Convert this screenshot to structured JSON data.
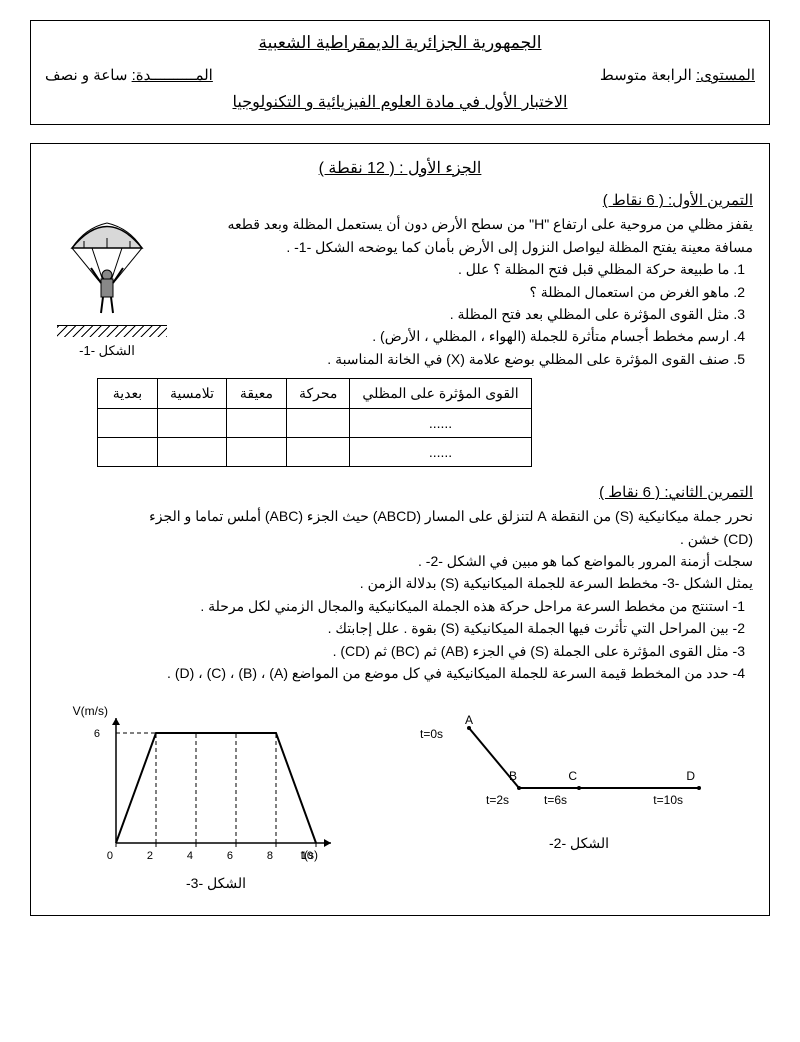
{
  "header": {
    "country": "الجمهورية الجزائرية الديمقراطية الشعبية",
    "level_label": "المستوى:",
    "level_value": "الرابعة متوسط",
    "duration_label": "المــــــــــدة:",
    "duration_value": "ساعة و نصف",
    "exam_title": "الاختبار الأول في مادة العلوم الفيزيائية و التكنولوجيا"
  },
  "part1": {
    "title": "الجزء الأول : ( 12 نقطة )"
  },
  "exercise1": {
    "title": "التمرين الأول: ( 6 نقاط )",
    "intro1": "يقفز مظلي من مروحية على ارتفاع \"H\" من سطح الأرض دون أن يستعمل المظلة وبعد قطعه",
    "intro2": "مسافة معينة يفتح المظلة ليواصل النزول إلى الأرض بأمان كما يوضحه الشكل -1- .",
    "q1": "1. ما طبيعة حركة المظلي قبل فتح المظلة ؟ علل .",
    "q2": "2. ماهو الغرض من استعمال المظلة ؟",
    "q3": "3. مثل القوى المؤثرة على المظلي بعد فتح المظلة .",
    "q4": "4. ارسم مخطط أجسام متأثرة للجملة (الهواء ، المظلي ، الأرض) .",
    "q5": "5. صنف القوى المؤثرة على المظلي بوضع علامة (X) في الخانة المناسبة .",
    "fig_label": "الشكل -1-",
    "table": {
      "h1": "القوى المؤثرة على المظلي",
      "h2": "محركة",
      "h3": "معيقة",
      "h4": "تلامسية",
      "h5": "بعدية",
      "dots": "......"
    }
  },
  "exercise2": {
    "title": "التمرين الثاني: ( 6 نقاط )",
    "line1": "نحرر جملة ميكانيكية (S) من النقطة A لتنزلق على المسار (ABCD) حيث الجزء (ABC) أملس تماما و الجزء",
    "line2": "(CD) خشن .",
    "line3": "سجلت أزمنة المرور بالمواضع كما هو مبين في الشكل -2- .",
    "line4": "يمثل الشكل -3- مخطط السرعة للجملة الميكانيكية (S) بدلالة الزمن .",
    "q1": "1- استنتج من مخطط السرعة مراحل حركة هذه الجملة الميكانيكية والمجال الزمني لكل مرحلة .",
    "q2": "2- بين المراحل التي تأثرت فيها الجملة الميكانيكية (S) بقوة . علل إجابتك .",
    "q3": "3- مثل القوى المؤثرة على الجملة (S) في الجزء (AB) ثم (BC) ثم (CD) .",
    "q4": "4- حدد من المخطط قيمة السرعة للجملة الميكانيكية في كل موضع من المواضع (A) ، (B) ، (C) ، (D) .",
    "fig2_label": "الشكل -2-",
    "fig3_label": "الشكل -3-"
  },
  "figure2": {
    "pointA": "A",
    "pointB": "B",
    "pointC": "C",
    "pointD": "D",
    "tA": "t=0s",
    "tB": "t=2s",
    "tC": "t=6s",
    "tD": "t=10s"
  },
  "figure3": {
    "ylabel": "V(m/s)",
    "xlabel": "t(s)",
    "ymax_label": "6",
    "xticks": [
      "0",
      "2",
      "4",
      "6",
      "8",
      "10"
    ],
    "ymax": 6,
    "xmax": 10,
    "points": [
      [
        0,
        0
      ],
      [
        2,
        6
      ],
      [
        4,
        6
      ],
      [
        6,
        6
      ],
      [
        8,
        6
      ],
      [
        10,
        0
      ]
    ],
    "line_color": "#000000",
    "dash_color": "#000000",
    "background": "#ffffff"
  },
  "parachute_svg": {
    "stroke": "#000000",
    "fill_canopy": "#d0d0d0",
    "fill_body": "#888888"
  }
}
